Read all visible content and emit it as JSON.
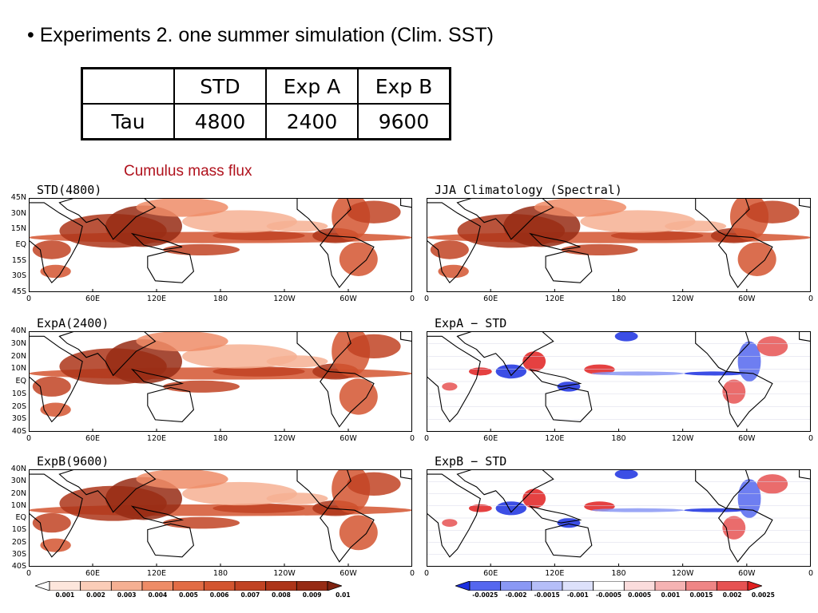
{
  "bullet_text": "• Experiments 2. one summer simulation (Clim. SST)",
  "table": {
    "headers": [
      "",
      "STD",
      "Exp A",
      "Exp B"
    ],
    "rows": [
      [
        "Tau",
        "4800",
        "2400",
        "9600"
      ]
    ]
  },
  "caption": "Cumulus mass flux",
  "panels": [
    {
      "title": "STD(4800)",
      "lat_labels": [
        "45N",
        "30N",
        "15N",
        "EQ",
        "15S",
        "30S",
        "45S"
      ],
      "kind": "field"
    },
    {
      "title": "JJA Climatology (Spectral)",
      "lat_labels": [],
      "kind": "field"
    },
    {
      "title": "ExpA(2400)",
      "lat_labels": [
        "40N",
        "30N",
        "20N",
        "10N",
        "EQ",
        "10S",
        "20S",
        "30S",
        "40S"
      ],
      "kind": "field"
    },
    {
      "title": "ExpA − STD",
      "lat_labels": [],
      "kind": "diff"
    },
    {
      "title": "ExpB(9600)",
      "lat_labels": [
        "40N",
        "30N",
        "20N",
        "10N",
        "EQ",
        "10S",
        "20S",
        "30S",
        "40S"
      ],
      "kind": "field"
    },
    {
      "title": "ExpB − STD",
      "lat_labels": [],
      "kind": "diff"
    }
  ],
  "lon_labels": [
    "0",
    "60E",
    "120E",
    "180",
    "120W",
    "60W",
    "0"
  ],
  "colorbar_left": {
    "labels": [
      "0.001",
      "0.002",
      "0.003",
      "0.004",
      "0.005",
      "0.006",
      "0.007",
      "0.008",
      "0.009",
      "0.01"
    ],
    "colors": [
      "#ffffff",
      "#fde6dc",
      "#fbcdb8",
      "#f6b093",
      "#ee8c67",
      "#e26c45",
      "#d35530",
      "#c14323",
      "#ad3519",
      "#962b14",
      "#7e2210"
    ]
  },
  "colorbar_right": {
    "labels": [
      "-0.0025",
      "-0.002",
      "-0.0015",
      "-0.001",
      "-0.0005",
      "0.0005",
      "0.001",
      "0.0015",
      "0.002",
      "0.0025"
    ],
    "colors": [
      "#1a2fe0",
      "#5567ef",
      "#8a98f4",
      "#b5bef8",
      "#dde1fb",
      "#ffffff",
      "#fbdcdc",
      "#f6b3b3",
      "#ef8686",
      "#e65252",
      "#e02020"
    ]
  }
}
